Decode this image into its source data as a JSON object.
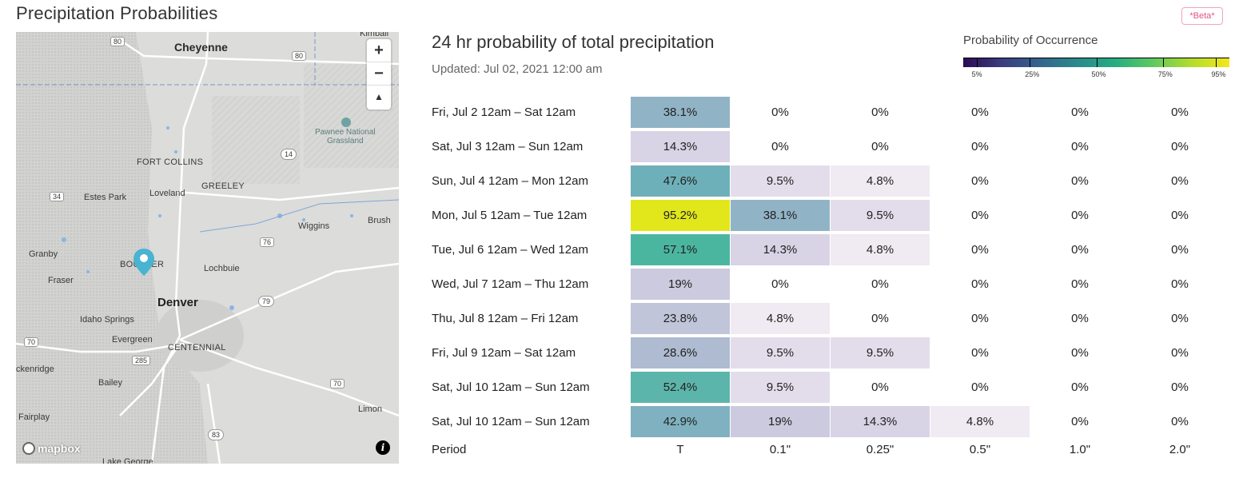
{
  "page": {
    "title": "Precipitation Probabilities",
    "beta": "*Beta*"
  },
  "map": {
    "zoom_in": "+",
    "zoom_out": "−",
    "compass": "▲",
    "attribution": "mapbox",
    "info": "i",
    "labels": {
      "cheyenne": "Cheyenne",
      "kimball": "Kimball",
      "fort_collins": "FORT COLLINS",
      "greeley": "GREELEY",
      "loveland": "Loveland",
      "estes_park": "Estes Park",
      "brush": "Brush",
      "wiggins": "Wiggins",
      "granby": "Granby",
      "boulder": "BOULDER",
      "lochbuie": "Lochbuie",
      "fraser": "Fraser",
      "denver": "Denver",
      "idaho_springs": "Idaho Springs",
      "evergreen": "Evergreen",
      "centennial": "CENTENNIAL",
      "breckenridge": "ckenridge",
      "bailey": "Bailey",
      "fairplay": "Fairplay",
      "limon": "Limon",
      "lake_george": "Lake George",
      "pawnee": "Pawnee National",
      "grassland": "Grassland",
      "hwy_80a": "80",
      "hwy_80b": "80",
      "hwy_14": "14",
      "hwy_34": "34",
      "hwy_76": "76",
      "hwy_79": "79",
      "hwy_70a": "70",
      "hwy_70b": "70",
      "hwy_285": "285",
      "hwy_83": "83"
    }
  },
  "chart": {
    "title": "24 hr probability of total precipitation",
    "updated": "Updated: Jul 02, 2021 12:00 am",
    "legend": {
      "title": "Probability of Occurrence",
      "ticks": [
        "5%",
        "25%",
        "50%",
        "75%",
        "95%"
      ]
    },
    "columns": [
      "T",
      "0.1\"",
      "0.25\"",
      "0.5\"",
      "1.0\"",
      "2.0\""
    ],
    "period_label": "Period",
    "rows": [
      {
        "period": "Fri, Jul 2 12am – Sat 12am",
        "values": [
          "38.1%",
          "0%",
          "0%",
          "0%",
          "0%",
          "0%"
        ],
        "num": [
          38.1,
          0,
          0,
          0,
          0,
          0
        ]
      },
      {
        "period": "Sat, Jul 3 12am – Sun 12am",
        "values": [
          "14.3%",
          "0%",
          "0%",
          "0%",
          "0%",
          "0%"
        ],
        "num": [
          14.3,
          0,
          0,
          0,
          0,
          0
        ]
      },
      {
        "period": "Sun, Jul 4 12am – Mon 12am",
        "values": [
          "47.6%",
          "9.5%",
          "4.8%",
          "0%",
          "0%",
          "0%"
        ],
        "num": [
          47.6,
          9.5,
          4.8,
          0,
          0,
          0
        ]
      },
      {
        "period": "Mon, Jul 5 12am – Tue 12am",
        "values": [
          "95.2%",
          "38.1%",
          "9.5%",
          "0%",
          "0%",
          "0%"
        ],
        "num": [
          95.2,
          38.1,
          9.5,
          0,
          0,
          0
        ]
      },
      {
        "period": "Tue, Jul 6 12am – Wed 12am",
        "values": [
          "57.1%",
          "14.3%",
          "4.8%",
          "0%",
          "0%",
          "0%"
        ],
        "num": [
          57.1,
          14.3,
          4.8,
          0,
          0,
          0
        ]
      },
      {
        "period": "Wed, Jul 7 12am – Thu 12am",
        "values": [
          "19%",
          "0%",
          "0%",
          "0%",
          "0%",
          "0%"
        ],
        "num": [
          19,
          0,
          0,
          0,
          0,
          0
        ]
      },
      {
        "period": "Thu, Jul 8 12am – Fri 12am",
        "values": [
          "23.8%",
          "4.8%",
          "0%",
          "0%",
          "0%",
          "0%"
        ],
        "num": [
          23.8,
          4.8,
          0,
          0,
          0,
          0
        ]
      },
      {
        "period": "Fri, Jul 9 12am – Sat 12am",
        "values": [
          "28.6%",
          "9.5%",
          "9.5%",
          "0%",
          "0%",
          "0%"
        ],
        "num": [
          28.6,
          9.5,
          9.5,
          0,
          0,
          0
        ]
      },
      {
        "period": "Sat, Jul 10 12am – Sun 12am",
        "values": [
          "52.4%",
          "9.5%",
          "0%",
          "0%",
          "0%",
          "0%"
        ],
        "num": [
          52.4,
          9.5,
          0,
          0,
          0,
          0
        ]
      },
      {
        "period": "Sat, Jul 10 12am – Sun 12am",
        "values": [
          "42.9%",
          "19%",
          "14.3%",
          "4.8%",
          "0%",
          "0%"
        ],
        "num": [
          42.9,
          19,
          14.3,
          4.8,
          0,
          0
        ]
      }
    ]
  }
}
